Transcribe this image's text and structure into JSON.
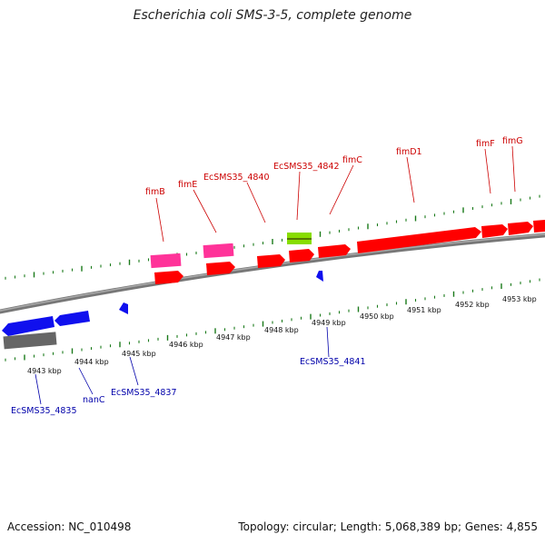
{
  "title": "Escherichia coli SMS-3-5, complete genome",
  "footer": {
    "accession": "Accession: NC_010498",
    "summary": "Topology: circular; Length: 5,068,389 bp; Genes: 4,855"
  },
  "scale_labels": [
    "4943 kbp",
    "4944 kbp",
    "4945 kbp",
    "4946 kbp",
    "4947 kbp",
    "4948 kbp",
    "4949 kbp",
    "4950 kbp",
    "4951 kbp",
    "4952 kbp",
    "4953 kbp"
  ],
  "colors": {
    "forward_gene": "#ff0000",
    "forward_rna": "#ff3399",
    "forward_misc": "#88dd00",
    "reverse_gene": "#1010ee",
    "reverse_pseudo": "#666666",
    "tick": "#1a7a1a",
    "backbone": "#888888",
    "forward_label": "#cc0000",
    "reverse_label": "#0000aa"
  },
  "forward_labels": [
    "fimB",
    "fimE",
    "EcSMS35_4840",
    "EcSMS35_4842",
    "fimC",
    "fimD1",
    "fimF",
    "fimG"
  ],
  "reverse_labels": [
    "EcSMS35_4835",
    "nanC",
    "EcSMS35_4837",
    "EcSMS35_4841"
  ]
}
